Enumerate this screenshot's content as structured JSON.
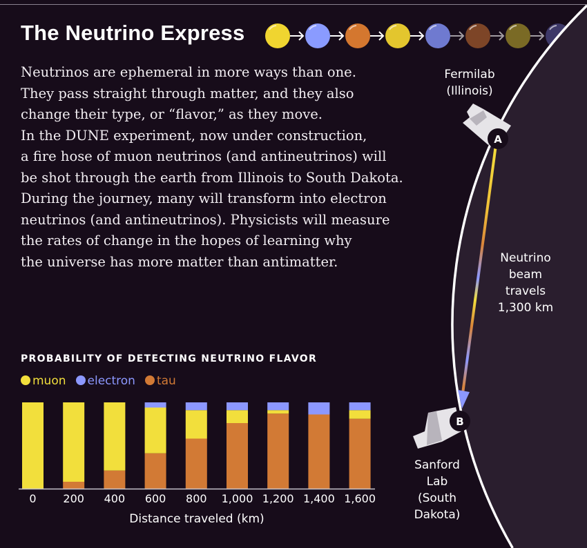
{
  "title": "The Neutrino Express",
  "flavor_chain": [
    "#f0d530",
    "#8a9bff",
    "#d4772f",
    "#e3c62e",
    "#6f7ad0",
    "#7d4527",
    "#7a6a25",
    "#3d3868",
    "#4a2e2a"
  ],
  "body_lines": [
    "Neutrinos are ephemeral in more ways than one.",
    "They pass straight through matter, and they also",
    "change their type, or “flavor,” as they move.",
    "In the DUNE experiment, now under construction,",
    "a fire hose of muon neutrinos (and antineutrinos) will",
    "be shot through the earth from Illinois to South Dakota.",
    "During the journey, many will transform into electron",
    "neutrinos (and antineutrinos). Physicists will measure",
    "the rates of change in the hopes of learning why",
    "the universe has more matter than antimatter."
  ],
  "diagram": {
    "start_label": [
      "Fermilab",
      "(Illinois)"
    ],
    "end_label": [
      "Sanford",
      "Lab",
      "(South",
      "Dakota)"
    ],
    "beam_label": [
      "Neutrino",
      "beam",
      "travels",
      "1,300 km"
    ],
    "point_a": "A",
    "point_b": "B"
  },
  "chart_data": {
    "type": "bar",
    "stacked": true,
    "title": "PROBABILITY OF DETECTING NEUTRINO FLAVOR",
    "xlabel": "Distance traveled (km)",
    "ylabel": "",
    "ylim": [
      0,
      100
    ],
    "legend_position": "top-left",
    "categories": [
      "0",
      "200",
      "400",
      "600",
      "800",
      "1,000",
      "1,200",
      "1,400",
      "1,600"
    ],
    "series": [
      {
        "name": "tau",
        "color": "#d27a35",
        "values": [
          0,
          8,
          21,
          41,
          58,
          76,
          87,
          86,
          81
        ]
      },
      {
        "name": "muon",
        "color": "#f2df3c",
        "values": [
          100,
          92,
          79,
          53,
          33,
          15,
          4,
          0,
          10
        ]
      },
      {
        "name": "electron",
        "color": "#8c98ff",
        "values": [
          0,
          0,
          0,
          6,
          9,
          9,
          9,
          14,
          9
        ]
      }
    ],
    "legend_order": [
      "muon",
      "electron",
      "tau"
    ]
  }
}
